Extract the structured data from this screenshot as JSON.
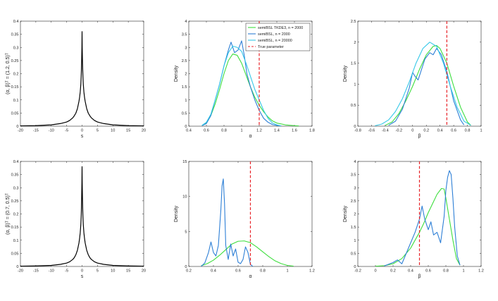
{
  "figure": {
    "background": "#ffffff"
  },
  "chart_data": [
    {
      "id": "r1c1",
      "type": "line",
      "xlabel": "s",
      "ylabel": "(α, β)ᵀ = (1.2, 0.5)ᵀ",
      "xlim": [
        -20,
        20
      ],
      "ylim": [
        0,
        0.4
      ],
      "xticks": [
        "-20",
        "-15",
        "-10",
        "-5",
        "0",
        "5",
        "10",
        "15",
        "20"
      ],
      "yticks": [
        "0",
        "0.05",
        "0.1",
        "0.15",
        "0.2",
        "0.25",
        "0.3",
        "0.35",
        "0.4"
      ],
      "series": [
        {
          "color": "#000000",
          "x": [
            -20,
            -15,
            -10,
            -7,
            -5,
            -4,
            -3,
            -2.5,
            -2,
            -1.5,
            -1,
            -0.8,
            -0.6,
            -0.4,
            -0.25,
            -0.15,
            -0.05,
            0,
            0.05,
            0.15,
            0.25,
            0.4,
            0.6,
            0.8,
            1,
            1.5,
            2,
            2.5,
            3,
            4,
            5,
            7,
            10,
            15,
            20
          ],
          "values": [
            0.001,
            0.002,
            0.005,
            0.01,
            0.016,
            0.022,
            0.032,
            0.04,
            0.05,
            0.067,
            0.095,
            0.11,
            0.13,
            0.16,
            0.2,
            0.24,
            0.3,
            0.36,
            0.3,
            0.24,
            0.2,
            0.16,
            0.13,
            0.11,
            0.095,
            0.067,
            0.05,
            0.04,
            0.032,
            0.022,
            0.016,
            0.01,
            0.005,
            0.002,
            0.001
          ]
        }
      ]
    },
    {
      "id": "r1c2",
      "type": "line",
      "xlabel": "α",
      "ylabel": "Density",
      "xlim": [
        0.4,
        1.8
      ],
      "ylim": [
        0,
        4
      ],
      "xticks": [
        "0.4",
        "0.6",
        "0.8",
        "1",
        "1.2",
        "1.4",
        "1.6",
        "1.8"
      ],
      "yticks": [
        "0",
        "0.5",
        "1",
        "1.5",
        "2",
        "2.5",
        "3",
        "3.5",
        "4"
      ],
      "vline": {
        "x": 1.2,
        "color": "#e8262b"
      },
      "legend": {
        "position": "top-right",
        "entries": [
          {
            "label": "semiBSL TKDE3, n = 2000",
            "color": "#3dde3d",
            "dashed": false
          },
          {
            "label": "semiBSL, n = 2000",
            "color": "#2d7fd6",
            "dashed": false
          },
          {
            "label": "semiBSL, n = 20000",
            "color": "#36c8e8",
            "dashed": false
          },
          {
            "label": "True parameter",
            "color": "#e8262b",
            "dashed": true
          }
        ]
      },
      "series": [
        {
          "color": "#3dde3d",
          "x": [
            0.55,
            0.6,
            0.65,
            0.7,
            0.75,
            0.8,
            0.85,
            0.9,
            0.95,
            1,
            1.05,
            1.1,
            1.15,
            1.2,
            1.25,
            1.3,
            1.35,
            1.4,
            1.5,
            1.6,
            1.65
          ],
          "values": [
            0.03,
            0.12,
            0.4,
            0.85,
            1.4,
            2.0,
            2.5,
            2.75,
            2.7,
            2.4,
            1.95,
            1.5,
            1.1,
            0.8,
            0.55,
            0.35,
            0.2,
            0.12,
            0.05,
            0.02,
            0.01
          ]
        },
        {
          "color": "#2d7fd6",
          "x": [
            0.55,
            0.6,
            0.65,
            0.7,
            0.75,
            0.8,
            0.85,
            0.88,
            0.92,
            0.96,
            1,
            1.03,
            1.06,
            1.1,
            1.15,
            1.2,
            1.25,
            1.3,
            1.35,
            1.4,
            1.45
          ],
          "values": [
            0.02,
            0.1,
            0.4,
            1.0,
            1.6,
            2.3,
            2.9,
            3.2,
            2.8,
            2.9,
            3.25,
            2.7,
            2.0,
            1.5,
            1.0,
            0.6,
            0.3,
            0.15,
            0.06,
            0.03,
            0.01
          ]
        },
        {
          "color": "#36c8e8",
          "x": [
            0.55,
            0.6,
            0.65,
            0.7,
            0.75,
            0.8,
            0.85,
            0.9,
            0.95,
            1,
            1.05,
            1.1,
            1.15,
            1.2,
            1.25,
            1.3,
            1.35,
            1.4,
            1.45
          ],
          "values": [
            0.03,
            0.15,
            0.45,
            1.0,
            1.6,
            2.3,
            2.8,
            3.05,
            3.0,
            2.85,
            2.4,
            1.9,
            1.4,
            1.0,
            0.6,
            0.3,
            0.12,
            0.05,
            0.01
          ]
        }
      ]
    },
    {
      "id": "r1c3",
      "type": "line",
      "xlabel": "β",
      "ylabel": "Density",
      "xlim": [
        -0.8,
        1
      ],
      "ylim": [
        0,
        2.5
      ],
      "xticks": [
        "-0.8",
        "-0.6",
        "-0.4",
        "-0.2",
        "0",
        "0.2",
        "0.4",
        "0.6",
        "0.8",
        "1"
      ],
      "yticks": [
        "0",
        "0.5",
        "1",
        "1.5",
        "2",
        "2.5"
      ],
      "vline": {
        "x": 0.5,
        "color": "#e8262b"
      },
      "series": [
        {
          "color": "#3dde3d",
          "x": [
            -0.4,
            -0.3,
            -0.2,
            -0.1,
            0,
            0.1,
            0.2,
            0.3,
            0.35,
            0.4,
            0.5,
            0.6,
            0.7,
            0.8,
            0.85
          ],
          "values": [
            0.02,
            0.1,
            0.3,
            0.6,
            0.95,
            1.35,
            1.7,
            1.9,
            1.92,
            1.85,
            1.5,
            0.95,
            0.45,
            0.1,
            0.02
          ]
        },
        {
          "color": "#2d7fd6",
          "x": [
            -0.35,
            -0.25,
            -0.15,
            -0.05,
            0,
            0.03,
            0.08,
            0.12,
            0.18,
            0.25,
            0.3,
            0.35,
            0.42,
            0.5,
            0.6,
            0.7,
            0.75
          ],
          "values": [
            0.02,
            0.12,
            0.4,
            0.9,
            1.28,
            1.2,
            1.1,
            1.3,
            1.6,
            1.75,
            1.7,
            1.85,
            1.7,
            1.3,
            0.6,
            0.15,
            0.03
          ]
        },
        {
          "color": "#36c8e8",
          "x": [
            -0.55,
            -0.45,
            -0.35,
            -0.25,
            -0.15,
            -0.05,
            0.05,
            0.15,
            0.25,
            0.35,
            0.45,
            0.55,
            0.65,
            0.75,
            0.85
          ],
          "values": [
            0.01,
            0.05,
            0.15,
            0.35,
            0.65,
            1.05,
            1.5,
            1.85,
            2.0,
            1.9,
            1.5,
            0.95,
            0.45,
            0.12,
            0.02
          ]
        }
      ]
    },
    {
      "id": "r2c1",
      "type": "line",
      "xlabel": "s",
      "ylabel": "(α, β)ᵀ = (0.7, 0.5)ᵀ",
      "xlim": [
        -20,
        20
      ],
      "ylim": [
        0,
        0.4
      ],
      "xticks": [
        "-20",
        "-15",
        "-10",
        "-5",
        "0",
        "5",
        "10",
        "15",
        "20"
      ],
      "yticks": [
        "0",
        "0.05",
        "0.1",
        "0.15",
        "0.2",
        "0.25",
        "0.3",
        "0.35",
        "0.4"
      ],
      "series": [
        {
          "color": "#000000",
          "x": [
            -20,
            -15,
            -10,
            -7,
            -5,
            -4,
            -3,
            -2.5,
            -2,
            -1.5,
            -1,
            -0.8,
            -0.6,
            -0.4,
            -0.25,
            -0.15,
            -0.05,
            0,
            0.05,
            0.15,
            0.25,
            0.4,
            0.6,
            0.8,
            1,
            1.5,
            2,
            2.5,
            3,
            4,
            5,
            7,
            10,
            15,
            20
          ],
          "values": [
            0.001,
            0.002,
            0.004,
            0.008,
            0.013,
            0.018,
            0.027,
            0.034,
            0.045,
            0.062,
            0.09,
            0.107,
            0.128,
            0.16,
            0.2,
            0.25,
            0.32,
            0.38,
            0.32,
            0.25,
            0.2,
            0.16,
            0.128,
            0.107,
            0.09,
            0.062,
            0.045,
            0.034,
            0.027,
            0.018,
            0.013,
            0.008,
            0.004,
            0.002,
            0.001
          ]
        }
      ]
    },
    {
      "id": "r2c2",
      "type": "line",
      "xlabel": "α",
      "ylabel": "Density",
      "xlim": [
        0.2,
        1.2
      ],
      "ylim": [
        0,
        15
      ],
      "xticks": [
        "0.2",
        "0.4",
        "0.6",
        "0.8",
        "1",
        "1.2"
      ],
      "yticks": [
        "0",
        "5",
        "10",
        "15"
      ],
      "vline": {
        "x": 0.7,
        "color": "#e8262b"
      },
      "series": [
        {
          "color": "#3dde3d",
          "x": [
            0.3,
            0.35,
            0.4,
            0.45,
            0.5,
            0.55,
            0.6,
            0.65,
            0.7,
            0.75,
            0.8,
            0.85,
            0.9,
            0.95,
            1,
            1.05
          ],
          "values": [
            0.1,
            0.4,
            0.9,
            1.6,
            2.4,
            3.2,
            3.6,
            3.65,
            3.4,
            2.8,
            2.1,
            1.4,
            0.8,
            0.4,
            0.15,
            0.05
          ]
        },
        {
          "color": "#2d7fd6",
          "x": [
            0.3,
            0.33,
            0.36,
            0.38,
            0.4,
            0.42,
            0.44,
            0.46,
            0.47,
            0.48,
            0.49,
            0.5,
            0.52,
            0.54,
            0.56,
            0.58,
            0.6,
            0.62,
            0.64,
            0.66,
            0.68,
            0.7,
            0.72
          ],
          "values": [
            0,
            0.5,
            2.0,
            3.5,
            2.0,
            1.5,
            3.0,
            8.0,
            11.5,
            12.5,
            9.0,
            3.0,
            1.0,
            3.2,
            1.5,
            2.5,
            0.6,
            0.4,
            1.0,
            2.8,
            2.0,
            0.3,
            0
          ]
        }
      ]
    },
    {
      "id": "r2c3",
      "type": "line",
      "xlabel": "β",
      "ylabel": "Density",
      "xlim": [
        -0.2,
        1.2
      ],
      "ylim": [
        0,
        4
      ],
      "xticks": [
        "-0.2",
        "0",
        "0.2",
        "0.4",
        "0.6",
        "0.8",
        "1",
        "1.2"
      ],
      "yticks": [
        "0",
        "0.5",
        "1",
        "1.5",
        "2",
        "2.5",
        "3",
        "3.5",
        "4"
      ],
      "vline": {
        "x": 0.5,
        "color": "#e8262b"
      },
      "series": [
        {
          "color": "#3dde3d",
          "x": [
            0,
            0.1,
            0.2,
            0.3,
            0.4,
            0.5,
            0.55,
            0.6,
            0.65,
            0.7,
            0.75,
            0.78,
            0.8,
            0.84,
            0.88,
            0.92,
            0.96
          ],
          "values": [
            0.01,
            0.03,
            0.1,
            0.3,
            0.7,
            1.3,
            1.65,
            2.05,
            2.4,
            2.75,
            2.97,
            2.95,
            2.6,
            1.8,
            1.0,
            0.3,
            0.05
          ]
        },
        {
          "color": "#2d7fd6",
          "x": [
            0.1,
            0.2,
            0.25,
            0.3,
            0.35,
            0.4,
            0.45,
            0.5,
            0.53,
            0.56,
            0.6,
            0.63,
            0.66,
            0.7,
            0.74,
            0.78,
            0.8,
            0.82,
            0.84,
            0.86,
            0.88,
            0.9,
            0.93,
            0.96
          ],
          "values": [
            0.02,
            0.15,
            0.25,
            0.1,
            0.5,
            0.9,
            1.3,
            1.8,
            2.3,
            1.8,
            1.4,
            1.7,
            1.2,
            1.3,
            0.9,
            1.9,
            2.9,
            3.4,
            3.65,
            3.5,
            2.6,
            1.5,
            0.4,
            0.05
          ]
        }
      ]
    }
  ]
}
